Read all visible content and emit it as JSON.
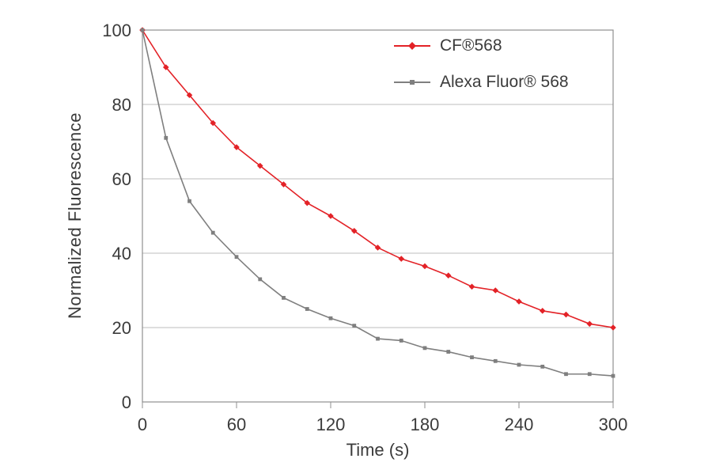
{
  "chart_data": {
    "type": "line",
    "title": "",
    "xlabel": "Time (s)",
    "ylabel": "Normalized Fluorescence",
    "xlim": [
      0,
      300
    ],
    "ylim": [
      0,
      100
    ],
    "xticks": [
      0,
      60,
      120,
      180,
      240,
      300
    ],
    "yticks": [
      0,
      20,
      40,
      60,
      80,
      100
    ],
    "grid": "horizontal",
    "legend_position": "top-center-inside",
    "x": [
      0,
      15,
      30,
      45,
      60,
      75,
      90,
      105,
      120,
      135,
      150,
      165,
      180,
      195,
      210,
      225,
      240,
      255,
      270,
      285,
      300
    ],
    "series": [
      {
        "id": "cf568",
        "name": "CF®568",
        "color": "#e32227",
        "marker": "diamond",
        "values": [
          100,
          90,
          82.5,
          75,
          68.5,
          63.5,
          58.5,
          53.5,
          50,
          46,
          41.5,
          38.5,
          36.5,
          34,
          31,
          30,
          27,
          24.5,
          23.5,
          21,
          20
        ]
      },
      {
        "id": "alexa568",
        "name": "Alexa Fluor® 568",
        "color": "#7f7f7f",
        "marker": "square",
        "values": [
          100,
          71,
          54,
          45.5,
          39,
          33,
          28,
          25,
          22.5,
          20.5,
          17,
          16.5,
          14.5,
          13.5,
          12,
          11,
          10,
          9.5,
          7.5,
          7.5,
          7
        ]
      }
    ],
    "colors": {
      "gridline": "#bcbcbc",
      "plot_border": "#8f8f8f",
      "text": "#3b3b3b",
      "background": "#ffffff"
    }
  }
}
